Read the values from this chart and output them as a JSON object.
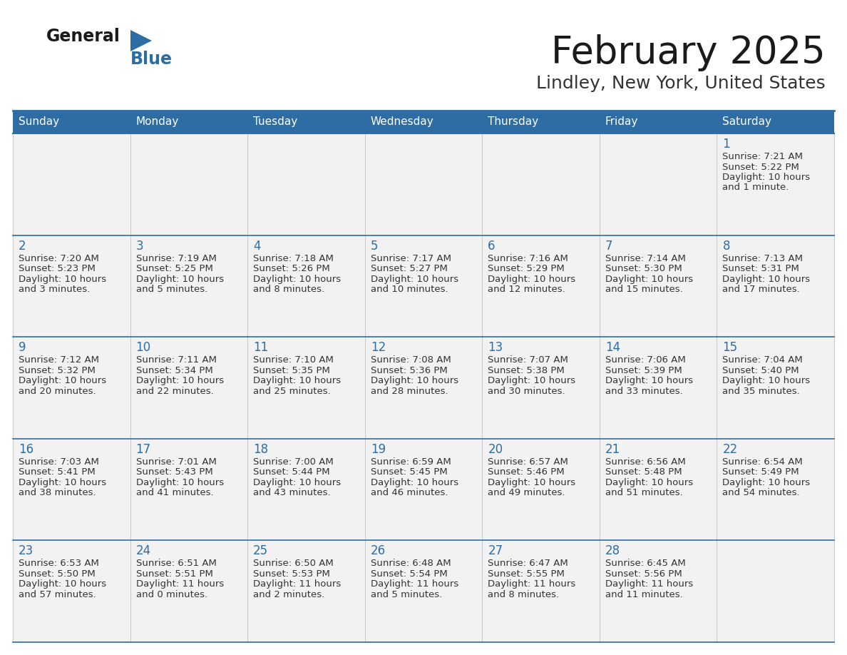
{
  "title": "February 2025",
  "subtitle": "Lindley, New York, United States",
  "header_bg": "#2E6DA4",
  "header_text_color": "#FFFFFF",
  "cell_bg": "#F2F2F2",
  "border_color": "#2E6DA4",
  "title_color": "#1a1a1a",
  "subtitle_color": "#333333",
  "day_num_color": "#2E6DA4",
  "cell_text_color": "#333333",
  "day_headers": [
    "Sunday",
    "Monday",
    "Tuesday",
    "Wednesday",
    "Thursday",
    "Friday",
    "Saturday"
  ],
  "days": [
    {
      "day": 1,
      "col": 6,
      "row": 0,
      "sunrise": "7:21 AM",
      "sunset": "5:22 PM",
      "daylight": "10 hours and 1 minute."
    },
    {
      "day": 2,
      "col": 0,
      "row": 1,
      "sunrise": "7:20 AM",
      "sunset": "5:23 PM",
      "daylight": "10 hours and 3 minutes."
    },
    {
      "day": 3,
      "col": 1,
      "row": 1,
      "sunrise": "7:19 AM",
      "sunset": "5:25 PM",
      "daylight": "10 hours and 5 minutes."
    },
    {
      "day": 4,
      "col": 2,
      "row": 1,
      "sunrise": "7:18 AM",
      "sunset": "5:26 PM",
      "daylight": "10 hours and 8 minutes."
    },
    {
      "day": 5,
      "col": 3,
      "row": 1,
      "sunrise": "7:17 AM",
      "sunset": "5:27 PM",
      "daylight": "10 hours and 10 minutes."
    },
    {
      "day": 6,
      "col": 4,
      "row": 1,
      "sunrise": "7:16 AM",
      "sunset": "5:29 PM",
      "daylight": "10 hours and 12 minutes."
    },
    {
      "day": 7,
      "col": 5,
      "row": 1,
      "sunrise": "7:14 AM",
      "sunset": "5:30 PM",
      "daylight": "10 hours and 15 minutes."
    },
    {
      "day": 8,
      "col": 6,
      "row": 1,
      "sunrise": "7:13 AM",
      "sunset": "5:31 PM",
      "daylight": "10 hours and 17 minutes."
    },
    {
      "day": 9,
      "col": 0,
      "row": 2,
      "sunrise": "7:12 AM",
      "sunset": "5:32 PM",
      "daylight": "10 hours and 20 minutes."
    },
    {
      "day": 10,
      "col": 1,
      "row": 2,
      "sunrise": "7:11 AM",
      "sunset": "5:34 PM",
      "daylight": "10 hours and 22 minutes."
    },
    {
      "day": 11,
      "col": 2,
      "row": 2,
      "sunrise": "7:10 AM",
      "sunset": "5:35 PM",
      "daylight": "10 hours and 25 minutes."
    },
    {
      "day": 12,
      "col": 3,
      "row": 2,
      "sunrise": "7:08 AM",
      "sunset": "5:36 PM",
      "daylight": "10 hours and 28 minutes."
    },
    {
      "day": 13,
      "col": 4,
      "row": 2,
      "sunrise": "7:07 AM",
      "sunset": "5:38 PM",
      "daylight": "10 hours and 30 minutes."
    },
    {
      "day": 14,
      "col": 5,
      "row": 2,
      "sunrise": "7:06 AM",
      "sunset": "5:39 PM",
      "daylight": "10 hours and 33 minutes."
    },
    {
      "day": 15,
      "col": 6,
      "row": 2,
      "sunrise": "7:04 AM",
      "sunset": "5:40 PM",
      "daylight": "10 hours and 35 minutes."
    },
    {
      "day": 16,
      "col": 0,
      "row": 3,
      "sunrise": "7:03 AM",
      "sunset": "5:41 PM",
      "daylight": "10 hours and 38 minutes."
    },
    {
      "day": 17,
      "col": 1,
      "row": 3,
      "sunrise": "7:01 AM",
      "sunset": "5:43 PM",
      "daylight": "10 hours and 41 minutes."
    },
    {
      "day": 18,
      "col": 2,
      "row": 3,
      "sunrise": "7:00 AM",
      "sunset": "5:44 PM",
      "daylight": "10 hours and 43 minutes."
    },
    {
      "day": 19,
      "col": 3,
      "row": 3,
      "sunrise": "6:59 AM",
      "sunset": "5:45 PM",
      "daylight": "10 hours and 46 minutes."
    },
    {
      "day": 20,
      "col": 4,
      "row": 3,
      "sunrise": "6:57 AM",
      "sunset": "5:46 PM",
      "daylight": "10 hours and 49 minutes."
    },
    {
      "day": 21,
      "col": 5,
      "row": 3,
      "sunrise": "6:56 AM",
      "sunset": "5:48 PM",
      "daylight": "10 hours and 51 minutes."
    },
    {
      "day": 22,
      "col": 6,
      "row": 3,
      "sunrise": "6:54 AM",
      "sunset": "5:49 PM",
      "daylight": "10 hours and 54 minutes."
    },
    {
      "day": 23,
      "col": 0,
      "row": 4,
      "sunrise": "6:53 AM",
      "sunset": "5:50 PM",
      "daylight": "10 hours and 57 minutes."
    },
    {
      "day": 24,
      "col": 1,
      "row": 4,
      "sunrise": "6:51 AM",
      "sunset": "5:51 PM",
      "daylight": "11 hours and 0 minutes."
    },
    {
      "day": 25,
      "col": 2,
      "row": 4,
      "sunrise": "6:50 AM",
      "sunset": "5:53 PM",
      "daylight": "11 hours and 2 minutes."
    },
    {
      "day": 26,
      "col": 3,
      "row": 4,
      "sunrise": "6:48 AM",
      "sunset": "5:54 PM",
      "daylight": "11 hours and 5 minutes."
    },
    {
      "day": 27,
      "col": 4,
      "row": 4,
      "sunrise": "6:47 AM",
      "sunset": "5:55 PM",
      "daylight": "11 hours and 8 minutes."
    },
    {
      "day": 28,
      "col": 5,
      "row": 4,
      "sunrise": "6:45 AM",
      "sunset": "5:56 PM",
      "daylight": "11 hours and 11 minutes."
    }
  ],
  "num_rows": 5,
  "num_cols": 7
}
